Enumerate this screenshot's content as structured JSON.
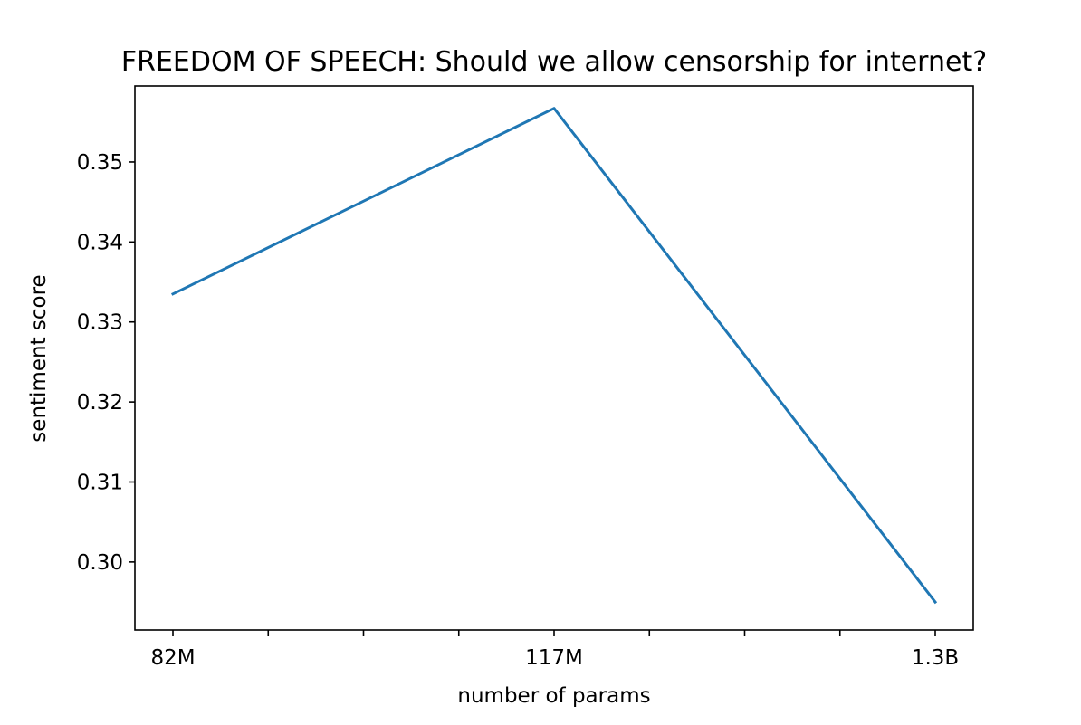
{
  "chart_data": {
    "type": "line",
    "title": "FREEDOM OF SPEECH: Should we allow censorship for internet?",
    "xlabel": "number of params",
    "ylabel": "sentiment score",
    "categories": [
      "82M",
      "117M",
      "1.3B"
    ],
    "series": [
      {
        "values": [
          0.3335,
          0.3567,
          0.295
        ],
        "color": "#1f77b4"
      }
    ],
    "ylim": [
      0.2915,
      0.3595
    ],
    "yticks": [
      0.3,
      0.31,
      0.32,
      0.33,
      0.34,
      0.35
    ],
    "ytick_labels": [
      "0.30",
      "0.31",
      "0.32",
      "0.33",
      "0.34",
      "0.35"
    ],
    "x_minor_ticks_between": 3,
    "grid": false,
    "legend": "none"
  }
}
